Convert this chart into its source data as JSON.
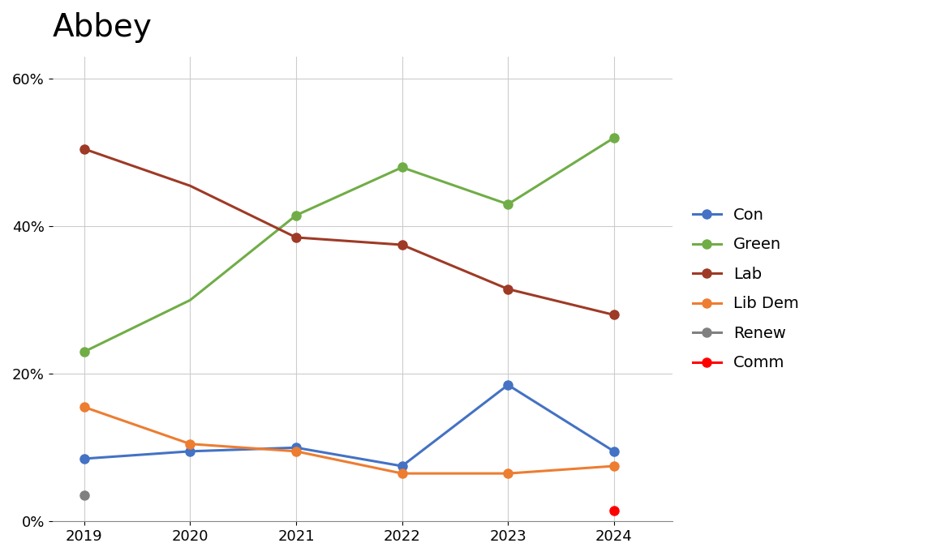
{
  "title": "Abbey",
  "years": [
    2019,
    2020,
    2021,
    2022,
    2023,
    2024
  ],
  "series": {
    "Con": {
      "color": "#4472C4",
      "values": [
        0.085,
        0.095,
        0.1,
        0.075,
        0.185,
        0.095
      ],
      "markers": [
        true,
        true,
        true,
        true,
        true,
        true
      ]
    },
    "Green": {
      "color": "#70AD47",
      "values": [
        0.23,
        0.3,
        0.415,
        0.48,
        0.43,
        0.52
      ],
      "markers": [
        true,
        false,
        true,
        true,
        true,
        true
      ]
    },
    "Lab": {
      "color": "#9E3A26",
      "values": [
        0.505,
        0.455,
        0.385,
        0.375,
        0.315,
        0.28
      ],
      "markers": [
        true,
        false,
        true,
        true,
        true,
        true
      ]
    },
    "Lib Dem": {
      "color": "#ED7D31",
      "values": [
        0.155,
        0.105,
        0.095,
        0.065,
        0.065,
        0.075
      ],
      "markers": [
        true,
        true,
        true,
        true,
        true,
        true
      ]
    },
    "Renew": {
      "color": "#808080",
      "values": [
        0.035,
        null,
        null,
        null,
        null,
        null
      ],
      "markers": [
        true,
        false,
        false,
        false,
        false,
        false
      ]
    },
    "Comm": {
      "color": "#FF0000",
      "values": [
        null,
        null,
        null,
        null,
        null,
        0.015
      ],
      "markers": [
        false,
        false,
        false,
        false,
        false,
        true
      ]
    }
  },
  "ylim": [
    0.0,
    0.63
  ],
  "yticks": [
    0.0,
    0.2,
    0.4,
    0.6
  ],
  "ytick_labels": [
    "0%",
    "20%",
    "40%",
    "60%"
  ],
  "title_fontsize": 28,
  "legend_fontsize": 14,
  "tick_fontsize": 13,
  "background_color": "#ffffff",
  "grid_color": "#cccccc",
  "marker_size": 8,
  "line_width": 2.2,
  "legend_order": [
    "Con",
    "Green",
    "Lab",
    "Lib Dem",
    "Renew",
    "Comm"
  ]
}
